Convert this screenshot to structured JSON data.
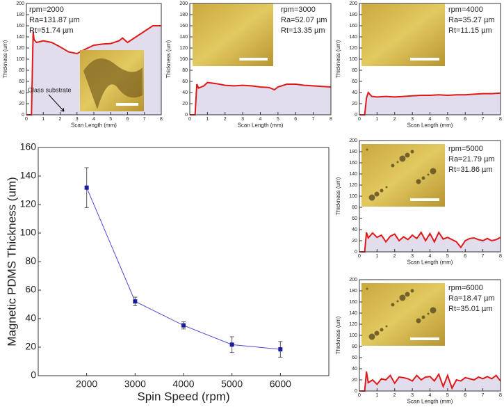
{
  "chart_data": [
    {
      "type": "errorline",
      "xlabel": "Spin Speed (rpm)",
      "ylabel": "Magnetic PDMS Thickness (um)",
      "x": [
        2000,
        3000,
        4000,
        5000,
        6000
      ],
      "values": [
        131.87,
        52.07,
        35.27,
        21.79,
        18.47
      ],
      "errors": [
        14,
        3,
        2.5,
        5.5,
        5.5
      ],
      "color": "#4a4ad0",
      "marker_color": "#1c1c9c",
      "xlim": [
        1000,
        7000
      ],
      "xticks": [
        2000,
        3000,
        4000,
        5000,
        6000
      ],
      "ylim": [
        0,
        160
      ],
      "yticks": [
        0,
        20,
        40,
        60,
        80,
        100,
        120,
        140,
        160
      ]
    },
    {
      "type": "area",
      "xlabel": "Scan Length (mm)",
      "ylabel": "Thickness (um)",
      "annotations": [
        "rpm=2000",
        "Ra=131.87 µm",
        "Rt=51.74 µm"
      ],
      "callout": "Glass substrate",
      "x": [
        0,
        0.3,
        0.4,
        0.45,
        0.6,
        1,
        1.5,
        2,
        2.5,
        3,
        3.5,
        4,
        4.5,
        5,
        5.5,
        5.7,
        6,
        6.5,
        7,
        7.5,
        8
      ],
      "values": [
        0,
        0,
        150,
        135,
        130,
        133,
        130,
        122,
        113,
        110,
        118,
        125,
        127,
        128,
        133,
        138,
        130,
        140,
        150,
        160,
        160
      ],
      "color": "#e01818",
      "fill_color": "#e2dded",
      "xlim": [
        0,
        8
      ],
      "xticks": [
        0,
        1,
        2,
        3,
        4,
        5,
        6,
        7,
        8
      ],
      "ylim": [
        0,
        200
      ],
      "yticks": [
        0,
        20,
        40,
        60,
        80,
        100,
        120,
        140,
        160,
        180,
        200
      ]
    },
    {
      "type": "area",
      "xlabel": "Scan Length (mm)",
      "ylabel": "Thickness (um)",
      "annotations": [
        "rpm=3000",
        "Ra=52.07 µm",
        "Rt=13.35 µm"
      ],
      "x": [
        0,
        0.3,
        0.4,
        0.5,
        0.8,
        1,
        1.5,
        2,
        2.5,
        3,
        3.5,
        4,
        4.5,
        4.8,
        5,
        5.5,
        6,
        6.5,
        7,
        7.5,
        8
      ],
      "values": [
        0,
        0,
        55,
        48,
        52,
        58,
        56,
        53,
        52,
        53,
        52,
        50,
        49,
        45,
        50,
        55,
        55,
        53,
        52,
        51,
        50
      ],
      "color": "#e01818",
      "fill_color": "#e2dded",
      "xlim": [
        0,
        8
      ],
      "xticks": [
        0,
        1,
        2,
        3,
        4,
        5,
        6,
        7,
        8
      ],
      "ylim": [
        0,
        200
      ],
      "yticks": [
        0,
        20,
        40,
        60,
        80,
        100,
        120,
        140,
        160,
        180,
        200
      ]
    },
    {
      "type": "area",
      "xlabel": "Scan Length (mm)",
      "ylabel": "Thickness (um)",
      "annotations": [
        "rpm=4000",
        "Ra=35.27 µm",
        "Rt=11.15 µm"
      ],
      "x": [
        0,
        0.3,
        0.4,
        0.5,
        0.7,
        1,
        1.5,
        2,
        2.5,
        3,
        3.5,
        4,
        4.5,
        5,
        5.5,
        6,
        6.5,
        7,
        7.5,
        8
      ],
      "values": [
        0,
        0,
        30,
        40,
        33,
        32,
        33,
        32,
        33,
        34,
        35,
        35,
        36,
        35,
        36,
        36,
        37,
        38,
        38,
        39
      ],
      "color": "#e01818",
      "fill_color": "#e2dded",
      "xlim": [
        0,
        8
      ],
      "xticks": [
        0,
        1,
        2,
        3,
        4,
        5,
        6,
        7,
        8
      ],
      "ylim": [
        0,
        200
      ],
      "yticks": [
        0,
        20,
        40,
        60,
        80,
        100,
        120,
        140,
        160,
        180,
        200
      ]
    },
    {
      "type": "area",
      "xlabel": "Scan Length (mm)",
      "ylabel": "Thickness (um)",
      "annotations": [
        "rpm=5000",
        "Ra=21.79 µm",
        "Rt=31.86 µm"
      ],
      "x": [
        0,
        0.3,
        0.4,
        0.5,
        0.75,
        1,
        1.25,
        1.5,
        1.75,
        2,
        2.25,
        2.5,
        2.75,
        3,
        3.25,
        3.5,
        3.75,
        4,
        4.25,
        4.5,
        4.75,
        5,
        5.25,
        5.5,
        5.75,
        6,
        6.25,
        6.5,
        6.75,
        7,
        7.25,
        7.5,
        7.75,
        8
      ],
      "values": [
        0,
        0,
        35,
        25,
        34,
        26,
        30,
        18,
        28,
        32,
        20,
        27,
        22,
        30,
        24,
        35,
        20,
        33,
        18,
        35,
        23,
        26,
        22,
        18,
        8,
        20,
        24,
        25,
        22,
        20,
        24,
        20,
        22,
        26
      ],
      "color": "#e01818",
      "fill_color": "#e2dded",
      "xlim": [
        0,
        8
      ],
      "xticks": [
        0,
        1,
        2,
        3,
        4,
        5,
        6,
        7,
        8
      ],
      "ylim": [
        0,
        200
      ],
      "yticks": [
        0,
        20,
        40,
        60,
        80,
        100,
        120,
        140,
        160,
        180,
        200
      ]
    },
    {
      "type": "area",
      "xlabel": "Scan Length (mm)",
      "ylabel": "Thickness (um)",
      "annotations": [
        "rpm=6000",
        "Ra=18.47 µm",
        "Rt=35.01 µm"
      ],
      "x": [
        0,
        0.3,
        0.4,
        0.5,
        0.75,
        1,
        1.25,
        1.5,
        1.75,
        2,
        2.25,
        2.5,
        2.75,
        3,
        3.25,
        3.5,
        3.75,
        4,
        4.25,
        4.5,
        4.75,
        5,
        5.25,
        5.5,
        5.75,
        6,
        6.25,
        6.5,
        6.75,
        7,
        7.25,
        7.5,
        7.75,
        8
      ],
      "values": [
        0,
        0,
        35,
        15,
        20,
        12,
        22,
        20,
        28,
        14,
        25,
        24,
        22,
        18,
        28,
        20,
        25,
        26,
        18,
        30,
        8,
        28,
        5,
        20,
        18,
        24,
        22,
        20,
        25,
        22,
        26,
        22,
        28,
        18
      ],
      "color": "#e01818",
      "fill_color": "#e2dded",
      "xlim": [
        0,
        8
      ],
      "xticks": [
        0,
        1,
        2,
        3,
        4,
        5,
        6,
        7,
        8
      ],
      "ylim": [
        0,
        200
      ],
      "yticks": [
        0,
        20,
        40,
        60,
        80,
        100,
        120,
        140,
        160,
        180,
        200
      ]
    }
  ]
}
